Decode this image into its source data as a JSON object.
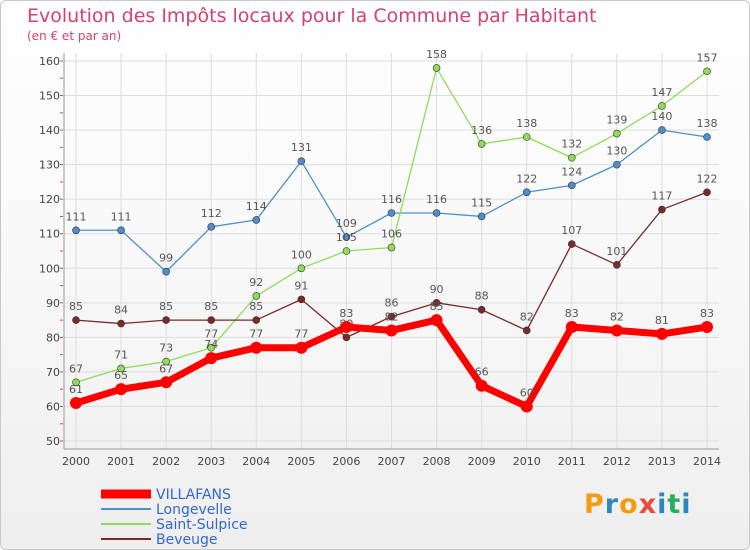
{
  "title": "Evolution des Impôts locaux pour la Commune par Habitant",
  "subtitle": "(en € et par an)",
  "logo_text": "Proxiti",
  "logo_colors": [
    "#f39c12",
    "#2e86c1",
    "#f39c12",
    "#e74c3c",
    "#2e86c1",
    "#27ae60",
    "#2e86c1"
  ],
  "colors": {
    "title": "#d4426f",
    "axis": "#444444",
    "grid": "#dddddd",
    "label": "#555555",
    "legend_text": "#3366cc"
  },
  "chart_data": {
    "type": "line",
    "title": "Evolution des Impôts locaux pour la Commune par Habitant",
    "subtitle": "(en € et par an)",
    "x": [
      "2000",
      "2001",
      "2002",
      "2003",
      "2004",
      "2005",
      "2006",
      "2007",
      "2008",
      "2009",
      "2010",
      "2011",
      "2012",
      "2013",
      "2014"
    ],
    "ylim": [
      50,
      160
    ],
    "yticks": [
      50,
      60,
      70,
      80,
      90,
      100,
      110,
      120,
      130,
      140,
      150,
      160
    ],
    "grid": true,
    "legend_position": "bottom-left",
    "series": [
      {
        "name": "VILLAFANS",
        "color": "#ff0000",
        "bold": true,
        "values": [
          61,
          65,
          67,
          74,
          77,
          77,
          83,
          82,
          85,
          66,
          60,
          83,
          82,
          81,
          83
        ],
        "labels": [
          "61",
          "65",
          "67",
          "74",
          "77",
          "77",
          "83",
          "82",
          "85",
          "66",
          "60",
          "83",
          "82",
          "81",
          "83"
        ]
      },
      {
        "name": "Longevelle",
        "color": "#4f8fc9",
        "bold": false,
        "values": [
          111,
          111,
          99,
          112,
          114,
          131,
          109,
          116,
          116,
          115,
          122,
          124,
          130,
          140,
          138
        ],
        "labels": [
          "111",
          "111",
          "99",
          "112",
          "114",
          "131",
          "109",
          "116",
          "116",
          "115",
          "122",
          "124",
          "130",
          "140",
          "138"
        ]
      },
      {
        "name": "Saint-Sulpice",
        "color": "#8fdc5a",
        "bold": false,
        "values": [
          67,
          71,
          73,
          77,
          92,
          100,
          105,
          106,
          158,
          136,
          138,
          132,
          139,
          147,
          157
        ],
        "labels": [
          "67",
          "71",
          "73",
          "77",
          "92",
          "100",
          "105",
          "106",
          "158",
          "136",
          "138",
          "132",
          "139",
          "147",
          "157"
        ]
      },
      {
        "name": "Beveuge",
        "color": "#7a2a2a",
        "bold": false,
        "values": [
          85,
          84,
          85,
          85,
          85,
          91,
          80,
          86,
          90,
          88,
          82,
          107,
          101,
          117,
          122
        ],
        "labels": [
          "85",
          "84",
          "85",
          "85",
          "85",
          "91",
          "80",
          "86",
          "90",
          "88",
          "82",
          "107",
          "101",
          "117",
          "122"
        ]
      }
    ]
  }
}
